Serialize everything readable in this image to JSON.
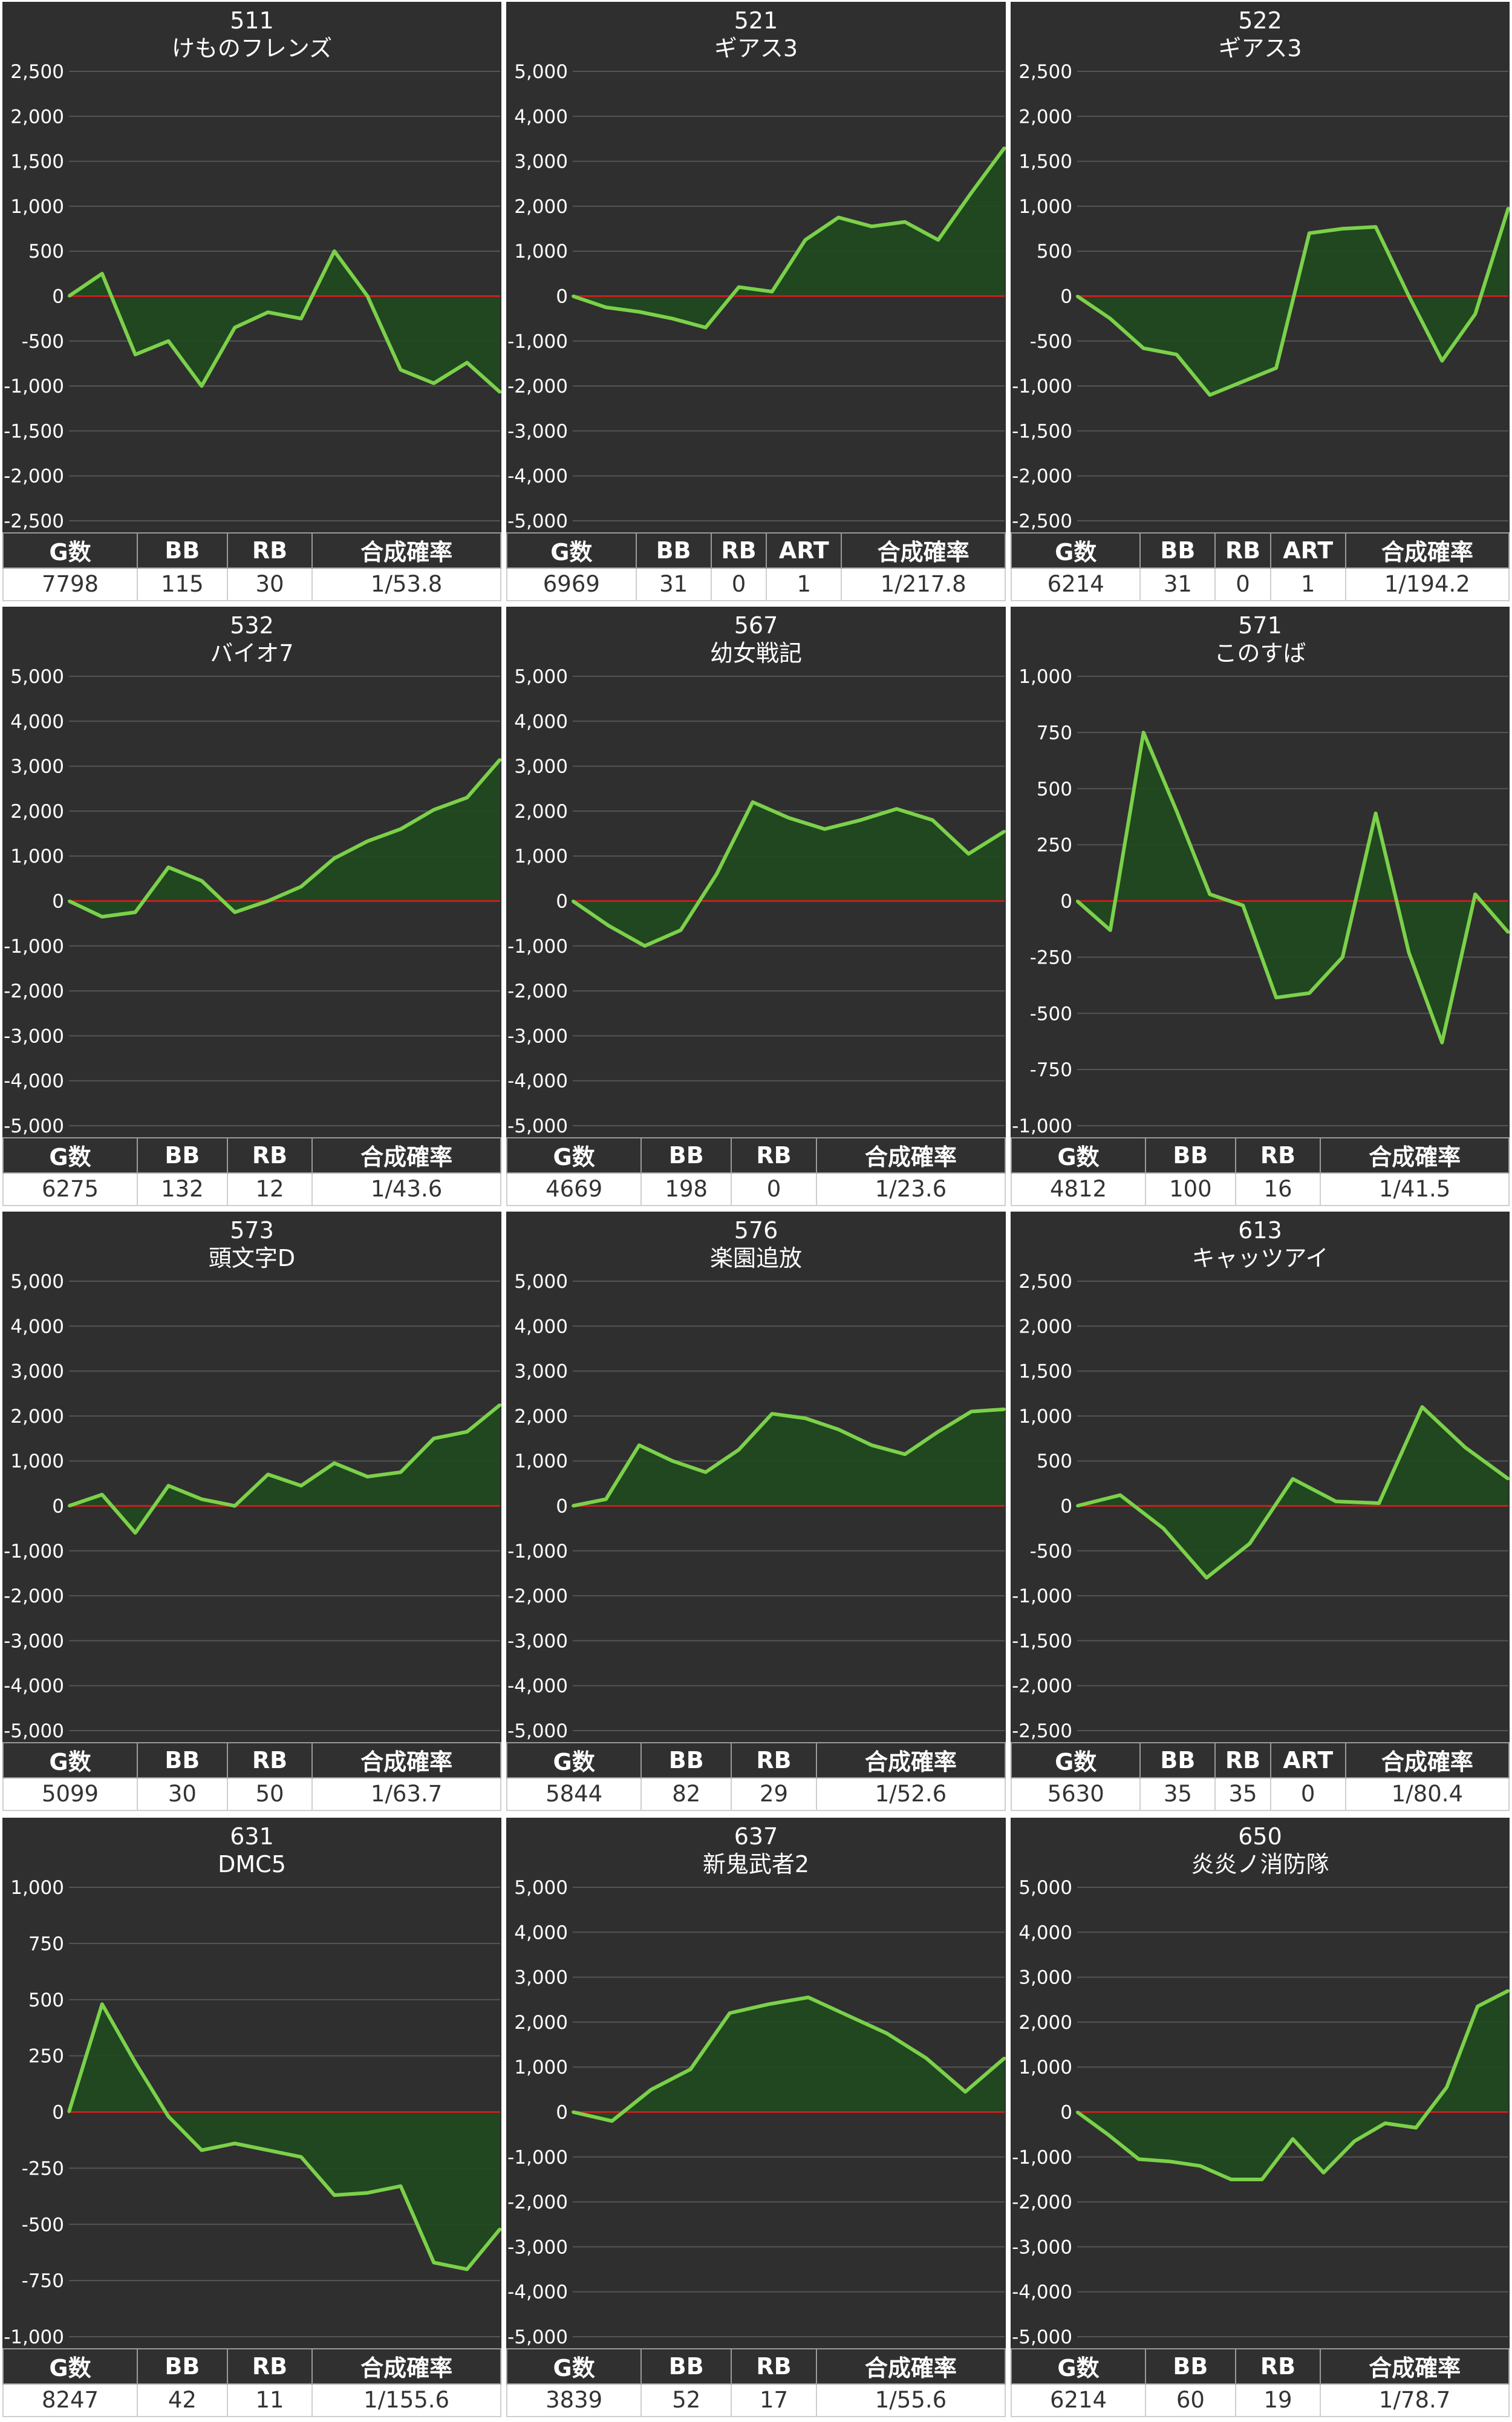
{
  "colors": {
    "background": "#2f2f2f",
    "line": "#7bd14a",
    "area": "#1f4a1f",
    "zero_line": "#c81e1e",
    "grid": "#555555",
    "text": "#ffffff"
  },
  "panels": [
    {
      "machine_no": "511",
      "machine_name": "けものフレンズ",
      "headers": [
        "G数",
        "BB",
        "RB",
        "合成確率"
      ],
      "values": [
        "7798",
        "115",
        "30",
        "1/53.8"
      ],
      "chart_data": {
        "type": "area",
        "ylim": [
          -2500,
          2500
        ],
        "yticks": [
          "2,500",
          "2,000",
          "1,500",
          "1,000",
          "500",
          "0",
          "-500",
          "-1,000",
          "-1,500",
          "-2,000",
          "-2,500"
        ],
        "y": [
          0,
          250,
          -650,
          -500,
          -1000,
          -350,
          -180,
          -250,
          500,
          0,
          -820,
          -970,
          -740,
          -1070
        ]
      }
    },
    {
      "machine_no": "521",
      "machine_name": "ギアス3",
      "headers": [
        "G数",
        "BB",
        "RB",
        "ART",
        "合成確率"
      ],
      "values": [
        "6969",
        "31",
        "0",
        "1",
        "1/217.8"
      ],
      "chart_data": {
        "type": "area",
        "ylim": [
          -5000,
          5000
        ],
        "yticks": [
          "5,000",
          "4,000",
          "3,000",
          "2,000",
          "1,000",
          "0",
          "-1,000",
          "-2,000",
          "-3,000",
          "-4,000",
          "-5,000"
        ],
        "y": [
          0,
          -250,
          -350,
          -500,
          -700,
          200,
          100,
          1250,
          1750,
          1550,
          1650,
          1250,
          2300,
          3300
        ]
      }
    },
    {
      "machine_no": "522",
      "machine_name": "ギアス3",
      "headers": [
        "G数",
        "BB",
        "RB",
        "ART",
        "合成確率"
      ],
      "values": [
        "6214",
        "31",
        "0",
        "1",
        "1/194.2"
      ],
      "chart_data": {
        "type": "area",
        "ylim": [
          -2500,
          2500
        ],
        "yticks": [
          "2,500",
          "2,000",
          "1,500",
          "1,000",
          "500",
          "0",
          "-500",
          "-1,000",
          "-1,500",
          "-2,000",
          "-2,500"
        ],
        "y": [
          0,
          -250,
          -580,
          -650,
          -1100,
          -950,
          -800,
          700,
          750,
          770,
          0,
          -720,
          -200,
          980
        ]
      }
    },
    {
      "machine_no": "532",
      "machine_name": "バイオ7",
      "headers": [
        "G数",
        "BB",
        "RB",
        "合成確率"
      ],
      "values": [
        "6275",
        "132",
        "12",
        "1/43.6"
      ],
      "chart_data": {
        "type": "area",
        "ylim": [
          -5000,
          5000
        ],
        "yticks": [
          "5,000",
          "4,000",
          "3,000",
          "2,000",
          "1,000",
          "0",
          "-1,000",
          "-2,000",
          "-3,000",
          "-4,000",
          "-5,000"
        ],
        "y": [
          0,
          -350,
          -250,
          750,
          450,
          -250,
          0,
          320,
          950,
          1330,
          1600,
          2030,
          2300,
          3150
        ]
      }
    },
    {
      "machine_no": "567",
      "machine_name": "幼女戦記",
      "headers": [
        "G数",
        "BB",
        "RB",
        "合成確率"
      ],
      "values": [
        "4669",
        "198",
        "0",
        "1/23.6"
      ],
      "chart_data": {
        "type": "area",
        "ylim": [
          -5000,
          5000
        ],
        "yticks": [
          "5,000",
          "4,000",
          "3,000",
          "2,000",
          "1,000",
          "0",
          "-1,000",
          "-2,000",
          "-3,000",
          "-4,000",
          "-5,000"
        ],
        "y": [
          0,
          -550,
          -1000,
          -650,
          600,
          2200,
          1850,
          1600,
          1800,
          2050,
          1800,
          1050,
          1550
        ]
      }
    },
    {
      "machine_no": "571",
      "machine_name": "このすば",
      "headers": [
        "G数",
        "BB",
        "RB",
        "合成確率"
      ],
      "values": [
        "4812",
        "100",
        "16",
        "1/41.5"
      ],
      "chart_data": {
        "type": "area",
        "ylim": [
          -1000,
          1000
        ],
        "yticks": [
          "1,000",
          "750",
          "500",
          "250",
          "0",
          "-250",
          "-500",
          "-750",
          "-1,000"
        ],
        "y": [
          0,
          -130,
          750,
          400,
          30,
          -20,
          -430,
          -410,
          -250,
          390,
          -230,
          -630,
          30,
          -140
        ]
      }
    },
    {
      "machine_no": "573",
      "machine_name": "頭文字D",
      "headers": [
        "G数",
        "BB",
        "RB",
        "合成確率"
      ],
      "values": [
        "5099",
        "30",
        "50",
        "1/63.7"
      ],
      "chart_data": {
        "type": "area",
        "ylim": [
          -5000,
          5000
        ],
        "yticks": [
          "5,000",
          "4,000",
          "3,000",
          "2,000",
          "1,000",
          "0",
          "-1,000",
          "-2,000",
          "-3,000",
          "-4,000",
          "-5,000"
        ],
        "y": [
          0,
          250,
          -600,
          450,
          150,
          0,
          700,
          450,
          950,
          650,
          750,
          1500,
          1650,
          2250
        ]
      }
    },
    {
      "machine_no": "576",
      "machine_name": "楽園追放",
      "headers": [
        "G数",
        "BB",
        "RB",
        "合成確率"
      ],
      "values": [
        "5844",
        "82",
        "29",
        "1/52.6"
      ],
      "chart_data": {
        "type": "area",
        "ylim": [
          -5000,
          5000
        ],
        "yticks": [
          "5,000",
          "4,000",
          "3,000",
          "2,000",
          "1,000",
          "0",
          "-1,000",
          "-2,000",
          "-3,000",
          "-4,000",
          "-5,000"
        ],
        "y": [
          0,
          150,
          1350,
          1000,
          750,
          1250,
          2050,
          1950,
          1700,
          1350,
          1150,
          1650,
          2100,
          2150
        ]
      }
    },
    {
      "machine_no": "613",
      "machine_name": "キャッツアイ",
      "headers": [
        "G数",
        "BB",
        "RB",
        "ART",
        "合成確率"
      ],
      "values": [
        "5630",
        "35",
        "35",
        "0",
        "1/80.4"
      ],
      "chart_data": {
        "type": "area",
        "ylim": [
          -2500,
          2500
        ],
        "yticks": [
          "2,500",
          "2,000",
          "1,500",
          "1,000",
          "500",
          "0",
          "-500",
          "-1,000",
          "-1,500",
          "-2,000",
          "-2,500"
        ],
        "y": [
          0,
          120,
          -250,
          -800,
          -420,
          300,
          50,
          30,
          1100,
          650,
          300
        ]
      }
    },
    {
      "machine_no": "631",
      "machine_name": "DMC5",
      "headers": [
        "G数",
        "BB",
        "RB",
        "合成確率"
      ],
      "values": [
        "8247",
        "42",
        "11",
        "1/155.6"
      ],
      "chart_data": {
        "type": "area",
        "ylim": [
          -1000,
          1000
        ],
        "yticks": [
          "1,000",
          "750",
          "500",
          "250",
          "0",
          "-250",
          "-500",
          "-750",
          "-1,000"
        ],
        "y": [
          0,
          480,
          220,
          -20,
          -170,
          -140,
          -170,
          -200,
          -370,
          -360,
          -330,
          -670,
          -700,
          -520
        ]
      }
    },
    {
      "machine_no": "637",
      "machine_name": "新鬼武者2",
      "headers": [
        "G数",
        "BB",
        "RB",
        "合成確率"
      ],
      "values": [
        "3839",
        "52",
        "17",
        "1/55.6"
      ],
      "chart_data": {
        "type": "area",
        "ylim": [
          -5000,
          5000
        ],
        "yticks": [
          "5,000",
          "4,000",
          "3,000",
          "2,000",
          "1,000",
          "0",
          "-1,000",
          "-2,000",
          "-3,000",
          "-4,000",
          "-5,000"
        ],
        "y": [
          0,
          -200,
          500,
          950,
          2200,
          2400,
          2550,
          2150,
          1750,
          1200,
          450,
          1200
        ]
      }
    },
    {
      "machine_no": "650",
      "machine_name": "炎炎ノ消防隊",
      "headers": [
        "G数",
        "BB",
        "RB",
        "合成確率"
      ],
      "values": [
        "6214",
        "60",
        "19",
        "1/78.7"
      ],
      "chart_data": {
        "type": "area",
        "ylim": [
          -5000,
          5000
        ],
        "yticks": [
          "5,000",
          "4,000",
          "3,000",
          "2,000",
          "1,000",
          "0",
          "-1,000",
          "-2,000",
          "-3,000",
          "-4,000",
          "-5,000"
        ],
        "y": [
          0,
          -500,
          -1050,
          -1100,
          -1200,
          -1500,
          -1500,
          -600,
          -1350,
          -650,
          -250,
          -350,
          550,
          2350,
          2700
        ]
      }
    }
  ]
}
